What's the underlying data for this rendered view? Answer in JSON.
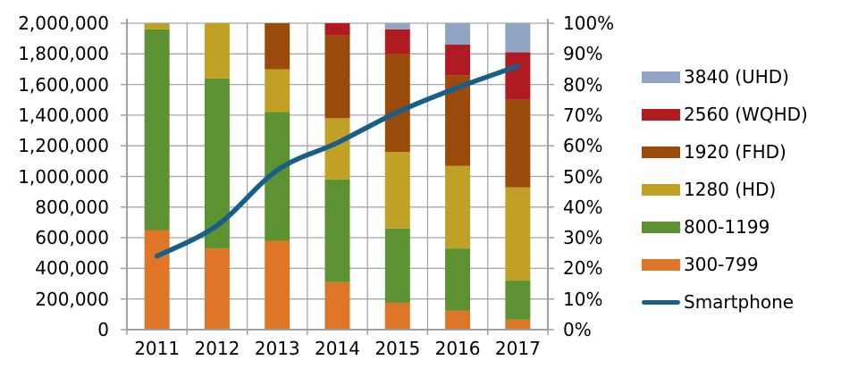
{
  "chart_data": {
    "type": "bar",
    "subtype": "stacked-column-with-line",
    "title": "",
    "xlabel": "",
    "ylabel": "",
    "categories": [
      "2011",
      "2012",
      "2013",
      "2014",
      "2015",
      "2016",
      "2017"
    ],
    "series": [
      {
        "name": "300-799",
        "type": "bar",
        "color": "#DE7527",
        "values": [
          650000,
          530000,
          580000,
          310000,
          175000,
          125000,
          65000
        ]
      },
      {
        "name": "800-1199",
        "type": "bar",
        "color": "#5C9232",
        "values": [
          1310000,
          1110000,
          840000,
          670000,
          485000,
          405000,
          255000
        ]
      },
      {
        "name": "1280 (HD)",
        "type": "bar",
        "color": "#C0A125",
        "values": [
          40000,
          360000,
          280000,
          400000,
          500000,
          540000,
          610000
        ]
      },
      {
        "name": "1920 (FHD)",
        "type": "bar",
        "color": "#9A4A0B",
        "values": [
          0,
          0,
          300000,
          540000,
          640000,
          590000,
          570000
        ]
      },
      {
        "name": "2560 (WQHD)",
        "type": "bar",
        "color": "#B01B21",
        "values": [
          0,
          0,
          0,
          80000,
          160000,
          200000,
          310000
        ]
      },
      {
        "name": "3840 (UHD)",
        "type": "bar",
        "color": "#90A5C3",
        "values": [
          0,
          0,
          0,
          0,
          40000,
          140000,
          190000
        ]
      },
      {
        "name": "Smartphone",
        "type": "line",
        "color": "#175E88",
        "axis": "right",
        "values": [
          24,
          34,
          52,
          61,
          71,
          79,
          86
        ]
      }
    ],
    "left_axis": {
      "min": 0,
      "max": 2000000,
      "step": 200000,
      "tick_labels": [
        "0",
        "200,000",
        "400,000",
        "600,000",
        "800,000",
        "1,000,000",
        "1,200,000",
        "1,400,000",
        "1,600,000",
        "1,800,000",
        "2,000,000"
      ]
    },
    "right_axis": {
      "min": 0,
      "max": 100,
      "step": 10,
      "tick_labels": [
        "0%",
        "10%",
        "20%",
        "30%",
        "40%",
        "50%",
        "60%",
        "70%",
        "80%",
        "90%",
        "100%"
      ]
    },
    "legend": {
      "position": "right",
      "items": [
        {
          "label": "3840 (UHD)",
          "color": "#90A5C3",
          "swatch": "bar"
        },
        {
          "label": "2560 (WQHD)",
          "color": "#B01B21",
          "swatch": "bar"
        },
        {
          "label": "1920 (FHD)",
          "color": "#9A4A0B",
          "swatch": "bar"
        },
        {
          "label": "1280 (HD)",
          "color": "#C0A125",
          "swatch": "bar"
        },
        {
          "label": "800-1199",
          "color": "#5C9232",
          "swatch": "bar"
        },
        {
          "label": "300-799",
          "color": "#DE7527",
          "swatch": "bar"
        },
        {
          "label": "Smartphone",
          "color": "#175E88",
          "swatch": "line"
        }
      ]
    },
    "grid": {
      "horizontal": true,
      "vertical": true,
      "color": "#A6A6A6"
    },
    "axis_line_color": "#A0A0A0",
    "bars_clipped_at_axis_max": true,
    "line_smoothed": true
  }
}
